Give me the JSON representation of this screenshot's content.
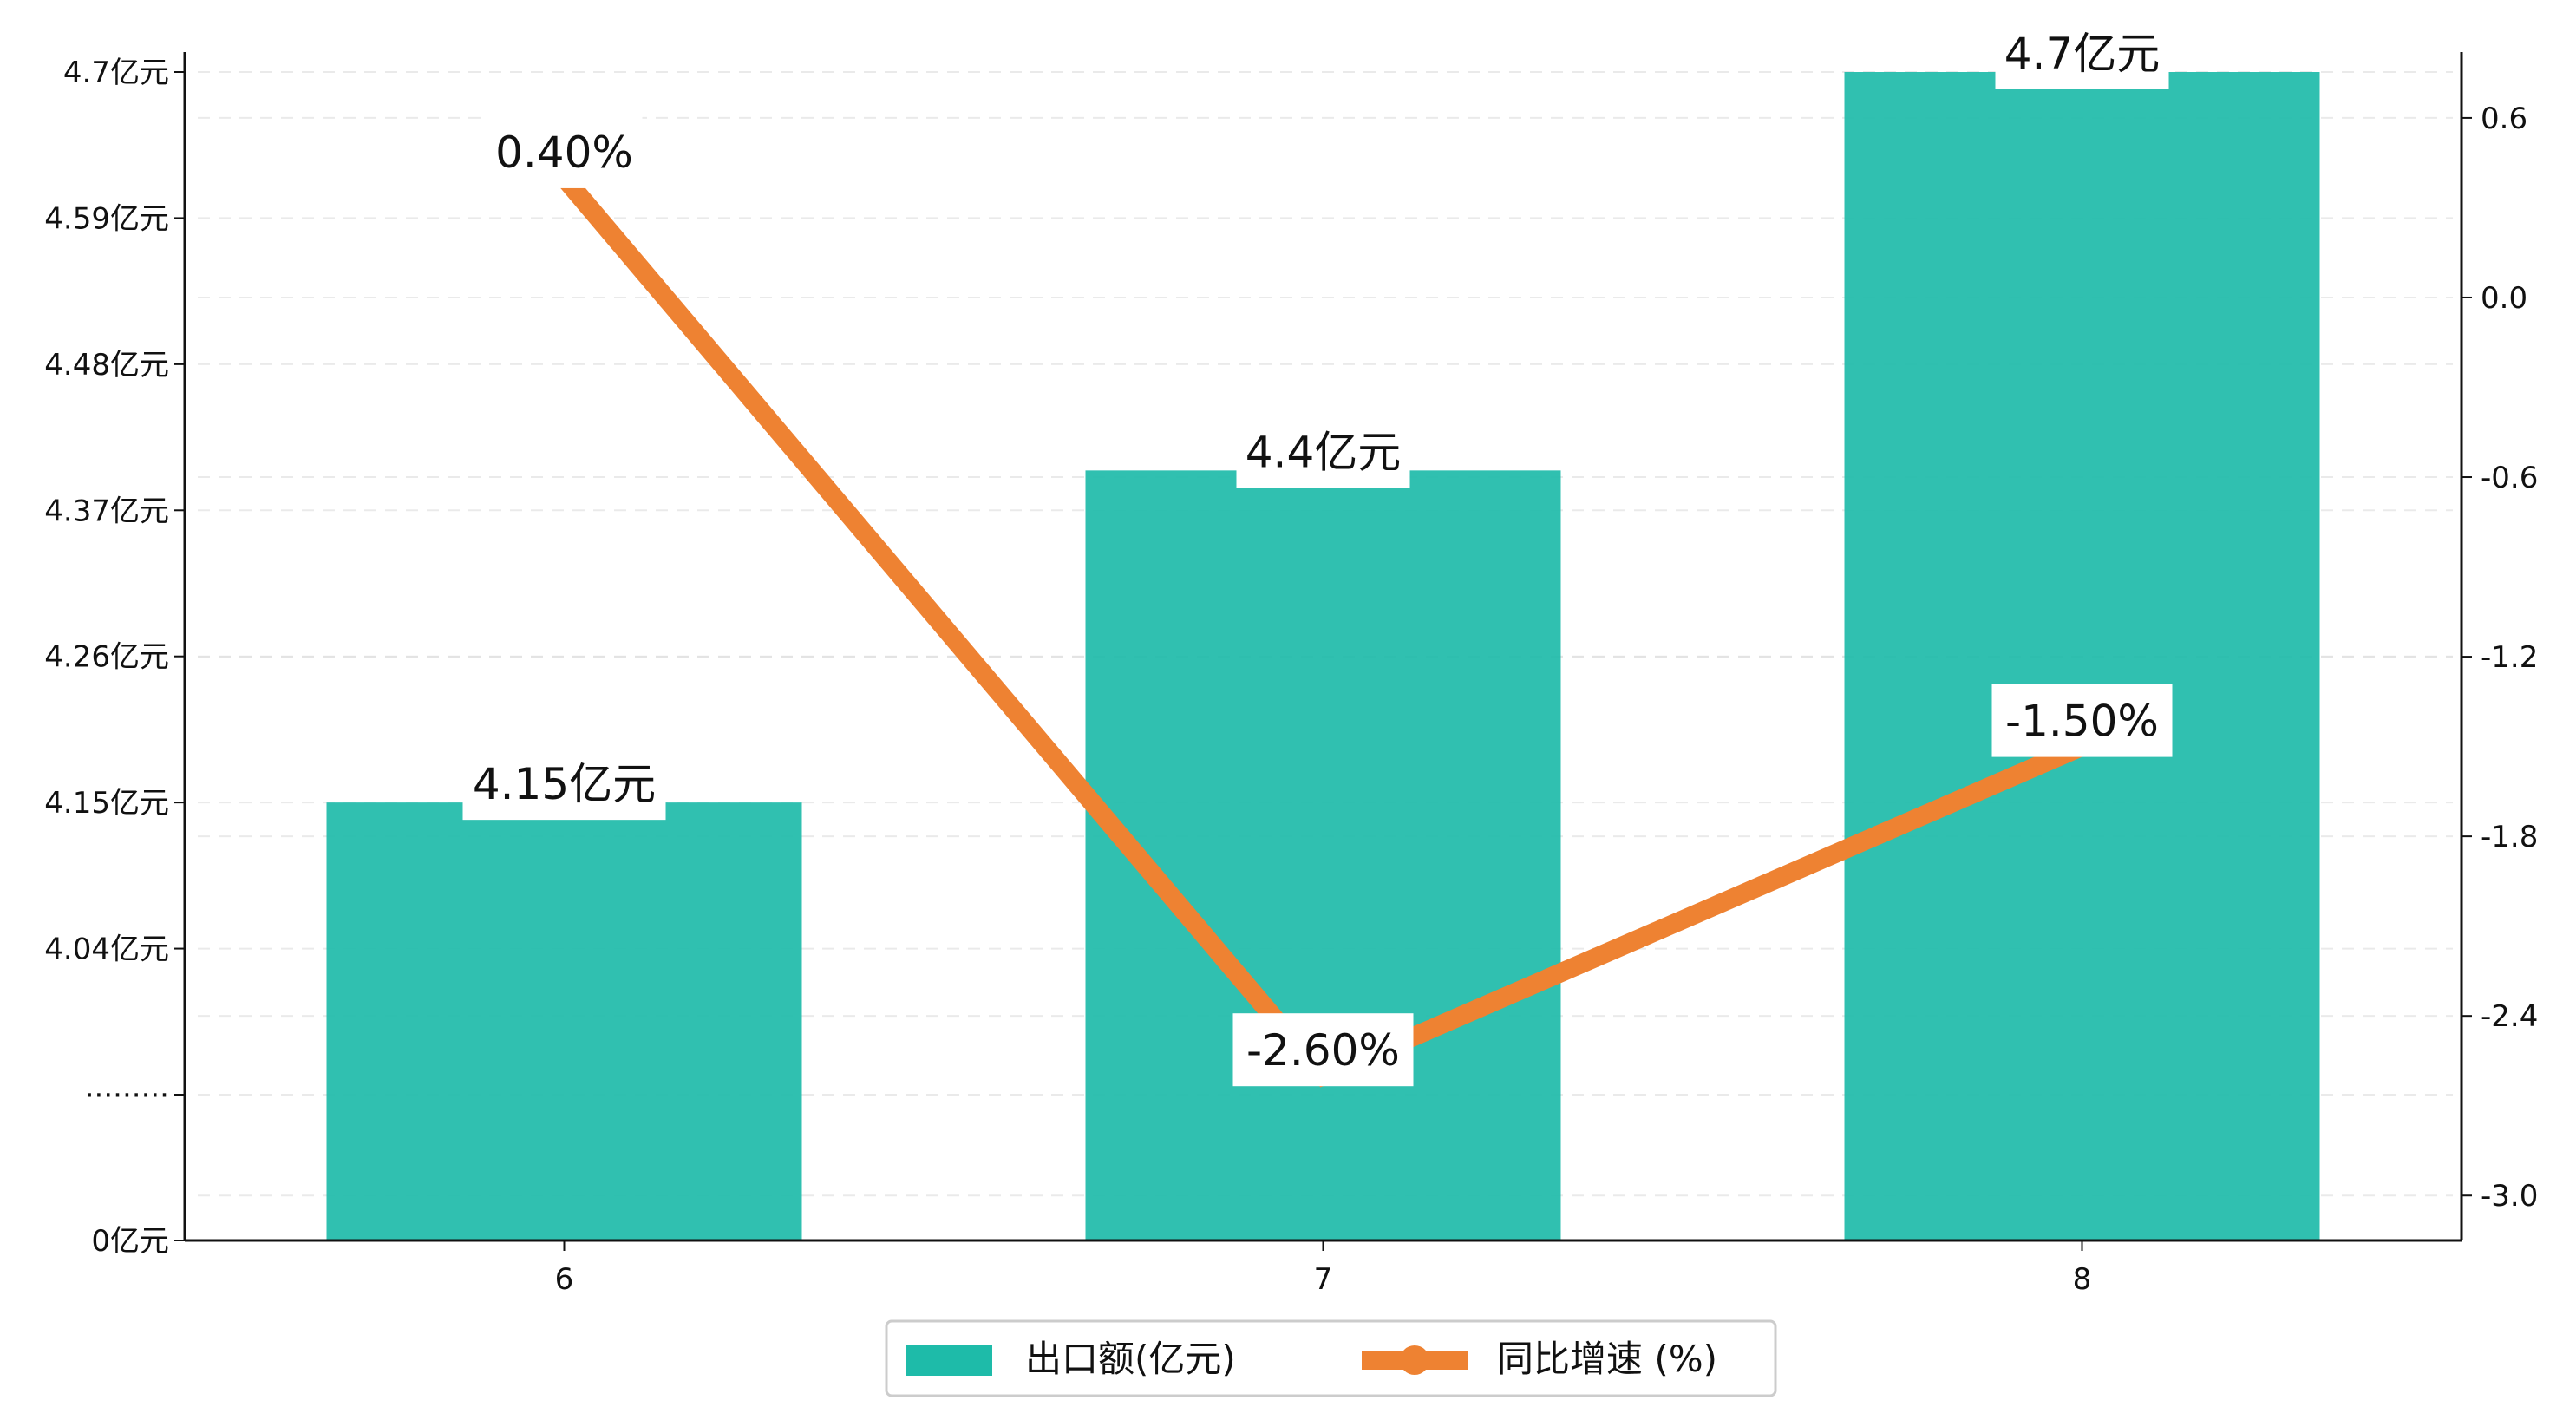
{
  "chart_data": {
    "type": "bar+line",
    "categories": [
      "6",
      "7",
      "8"
    ],
    "series": [
      {
        "name": "出口额(亿元)",
        "type": "bar",
        "axis": "left",
        "values": [
          4.15,
          4.4,
          4.7
        ],
        "labels": [
          "4.15亿元",
          "4.4亿元",
          "4.7亿元"
        ],
        "color": "#1EBBA9"
      },
      {
        "name": "同比增速 (%)",
        "type": "line",
        "axis": "right",
        "values": [
          0.4,
          -2.6,
          -1.5
        ],
        "labels": [
          "0.40%",
          "-2.60%",
          "-1.50%"
        ],
        "color": "#EE8232"
      }
    ],
    "y_left": {
      "broken_axis": true,
      "tick_labels": [
        "0亿元",
        "·········",
        "4.04亿元",
        "4.15亿元",
        "4.26亿元",
        "4.37亿元",
        "4.48亿元",
        "4.59亿元",
        "4.7亿元"
      ]
    },
    "y_right": {
      "ylim": [
        -3.15,
        0.82
      ],
      "tick_values": [
        -3.0,
        -2.4,
        -1.8,
        -1.2,
        -0.6,
        0.0,
        0.6
      ],
      "tick_labels": [
        "-3.0",
        "-2.4",
        "-1.8",
        "-1.2",
        "-0.6",
        "0.0",
        "0.6"
      ]
    },
    "grid": true,
    "legend_position": "bottom-center"
  }
}
